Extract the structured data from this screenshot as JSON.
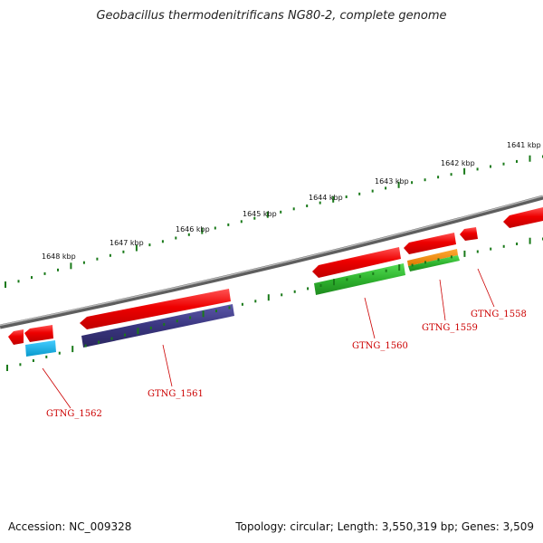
{
  "title": "Geobacillus thermodenitrificans NG80-2, complete genome",
  "footer": {
    "accession": "Accession: NC_009328",
    "summary": "Topology: circular; Length: 3,550,319 bp; Genes: 3,509"
  },
  "kbp_ticks": [
    "1641 kbp",
    "1642 kbp",
    "1643 kbp",
    "1644 kbp",
    "1645 kbp",
    "1646 kbp",
    "1647 kbp",
    "1648 kbp"
  ],
  "genes": [
    "GTNG_1558",
    "GTNG_1559",
    "GTNG_1560",
    "GTNG_1561",
    "GTNG_1562"
  ],
  "colors": {
    "backbone": "#808080",
    "tick": "#1a7a1a",
    "gene_red": "#ee1111",
    "gene_purple": "#3d3a80",
    "gene_green": "#33bb33",
    "gene_orange": "#f08a00",
    "gene_cyan": "#11aadd",
    "label_red": "#cc0000"
  }
}
